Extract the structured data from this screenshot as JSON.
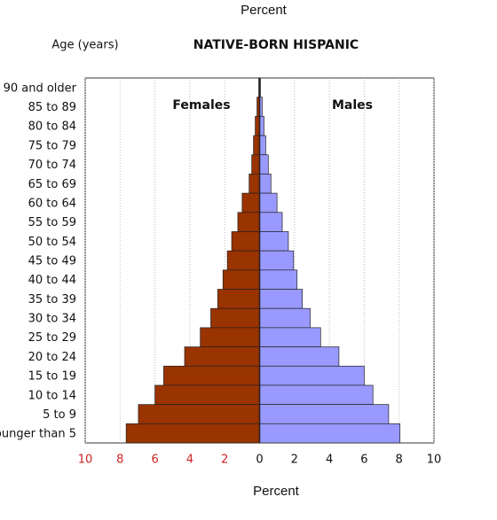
{
  "chart_data": {
    "type": "pyramid",
    "title": "NATIVE-BORN HISPANIC",
    "y_label": "Age (years)",
    "x_label": "Percent",
    "x_label_top": "Percent",
    "categories": [
      "90 and older",
      "85 to 89",
      "80 to 84",
      "75 to 79",
      "70 to 74",
      "65 to 69",
      "60 to 64",
      "55 to 59",
      "50 to 54",
      "45 to 49",
      "40 to 44",
      "35 to 39",
      "30 to 34",
      "25 to 29",
      "20 to 24",
      "15 to 19",
      "10 to 14",
      "5 to 9",
      "Younger than 5"
    ],
    "series": [
      {
        "name": "Females",
        "color": "#993300",
        "values": [
          -0.05,
          -0.15,
          -0.25,
          -0.35,
          -0.45,
          -0.6,
          -1.0,
          -1.25,
          -1.6,
          -1.85,
          -2.1,
          -2.4,
          -2.8,
          -3.4,
          -4.3,
          -5.5,
          -6.0,
          -6.95,
          -7.65
        ]
      },
      {
        "name": "Males",
        "color": "#9999ff",
        "values": [
          0.05,
          0.15,
          0.25,
          0.35,
          0.5,
          0.65,
          1.0,
          1.3,
          1.65,
          1.95,
          2.15,
          2.45,
          2.9,
          3.5,
          4.55,
          6.0,
          6.5,
          7.4,
          8.05
        ]
      }
    ],
    "xlim": [
      -10,
      10
    ],
    "xticks": [
      {
        "value": -10,
        "label": "10"
      },
      {
        "value": -8,
        "label": "8"
      },
      {
        "value": -6,
        "label": "6"
      },
      {
        "value": -4,
        "label": "4"
      },
      {
        "value": -2,
        "label": "2"
      },
      0,
      2,
      4,
      6,
      8,
      10
    ],
    "negative_tick_color": "#cc2222",
    "grid": true
  }
}
